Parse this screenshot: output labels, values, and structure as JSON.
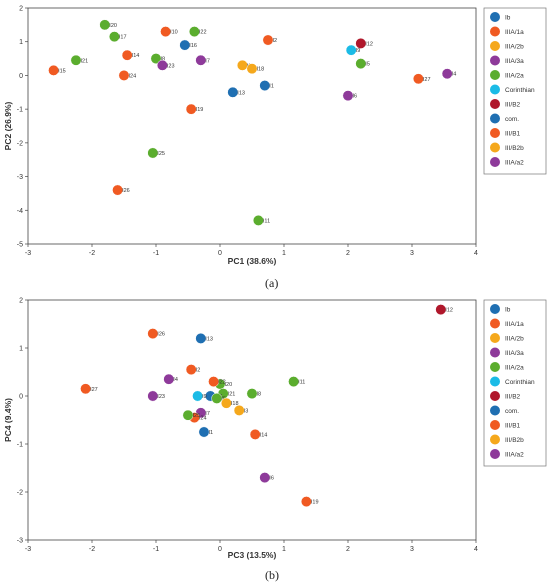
{
  "chart_data": [
    {
      "type": "scatter",
      "caption": "(a)",
      "xlabel": "PC1 (38.6%)",
      "ylabel": "PC2 (26.9%)",
      "xlim": [
        -3,
        4
      ],
      "ylim": [
        -5,
        2
      ],
      "xticks": [
        -3,
        -2,
        -1,
        0,
        1,
        2,
        3,
        4
      ],
      "yticks": [
        2,
        1,
        0,
        -1,
        -2,
        -3,
        -4,
        -5
      ],
      "grid": false,
      "legend_position": "right",
      "legend": [
        {
          "label": "Ib",
          "color": "#1f6fb2"
        },
        {
          "label": "IIIA/1a",
          "color": "#f05a22"
        },
        {
          "label": "IIIA/2b",
          "color": "#f5a81c"
        },
        {
          "label": "IIIA/3a",
          "color": "#8e3a9a"
        },
        {
          "label": "IIIA/2a",
          "color": "#5bad2e"
        },
        {
          "label": "Corinthian",
          "color": "#1bbbe6"
        },
        {
          "label": "III/B2",
          "color": "#b0172b"
        },
        {
          "label": "com.",
          "color": "#1f6fb2"
        },
        {
          "label": "III/B1",
          "color": "#f05a22"
        },
        {
          "label": "III/B2b",
          "color": "#f5a81c"
        },
        {
          "label": "IIIA/a2",
          "color": "#8e3a9a"
        }
      ],
      "points": [
        {
          "label": "I20",
          "x": -1.8,
          "y": 1.5,
          "color": "#5bad2e"
        },
        {
          "label": "I17",
          "x": -1.65,
          "y": 1.15,
          "color": "#5bad2e"
        },
        {
          "label": "I10",
          "x": -0.85,
          "y": 1.3,
          "color": "#f05a22"
        },
        {
          "label": "I22",
          "x": -0.4,
          "y": 1.3,
          "color": "#5bad2e"
        },
        {
          "label": "I16",
          "x": -0.55,
          "y": 0.9,
          "color": "#1f6fb2"
        },
        {
          "label": "I2",
          "x": 0.75,
          "y": 1.05,
          "color": "#f05a22"
        },
        {
          "label": "I12",
          "x": 2.2,
          "y": 0.95,
          "color": "#b0172b"
        },
        {
          "label": "I9",
          "x": 2.05,
          "y": 0.75,
          "color": "#1bbbe6"
        },
        {
          "label": "I21",
          "x": -2.25,
          "y": 0.45,
          "color": "#5bad2e"
        },
        {
          "label": "I14",
          "x": -1.45,
          "y": 0.6,
          "color": "#f05a22"
        },
        {
          "label": "I8",
          "x": -1.0,
          "y": 0.5,
          "color": "#5bad2e"
        },
        {
          "label": "I23",
          "x": -0.9,
          "y": 0.3,
          "color": "#8e3a9a"
        },
        {
          "label": "I7",
          "x": -0.3,
          "y": 0.45,
          "color": "#8e3a9a"
        },
        {
          "label": "I15",
          "x": -2.6,
          "y": 0.15,
          "color": "#f05a22"
        },
        {
          "label": "I24",
          "x": -1.5,
          "y": 0.0,
          "color": "#f05a22"
        },
        {
          "label": "I3",
          "x": 0.35,
          "y": 0.3,
          "color": "#f5a81c"
        },
        {
          "label": "I18",
          "x": 0.5,
          "y": 0.2,
          "color": "#f5a81c"
        },
        {
          "label": "I5",
          "x": 2.2,
          "y": 0.35,
          "color": "#5bad2e"
        },
        {
          "label": "I27",
          "x": 3.1,
          "y": -0.1,
          "color": "#f05a22"
        },
        {
          "label": "I4",
          "x": 3.55,
          "y": 0.05,
          "color": "#8e3a9a"
        },
        {
          "label": "I1",
          "x": 0.7,
          "y": -0.3,
          "color": "#1f6fb2"
        },
        {
          "label": "I13",
          "x": 0.2,
          "y": -0.5,
          "color": "#1f6fb2"
        },
        {
          "label": "I6",
          "x": 2.0,
          "y": -0.6,
          "color": "#8e3a9a"
        },
        {
          "label": "I19",
          "x": -0.45,
          "y": -1.0,
          "color": "#f05a22"
        },
        {
          "label": "I25",
          "x": -1.05,
          "y": -2.3,
          "color": "#5bad2e"
        },
        {
          "label": "I26",
          "x": -1.6,
          "y": -3.4,
          "color": "#f05a22"
        },
        {
          "label": "I11",
          "x": 0.6,
          "y": -4.3,
          "color": "#5bad2e"
        }
      ]
    },
    {
      "type": "scatter",
      "caption": "(b)",
      "xlabel": "PC3 (13.5%)",
      "ylabel": "PC4 (9.4%)",
      "xlim": [
        -3,
        4
      ],
      "ylim": [
        -3,
        2
      ],
      "xticks": [
        -3,
        -2,
        -1,
        0,
        1,
        2,
        3,
        4
      ],
      "yticks": [
        2,
        1,
        0,
        -1,
        -2,
        -3
      ],
      "grid": false,
      "legend_position": "right",
      "legend": [
        {
          "label": "Ib",
          "color": "#1f6fb2"
        },
        {
          "label": "IIIA/1a",
          "color": "#f05a22"
        },
        {
          "label": "IIIA/2b",
          "color": "#f5a81c"
        },
        {
          "label": "IIIA/3a",
          "color": "#8e3a9a"
        },
        {
          "label": "IIIA/2a",
          "color": "#5bad2e"
        },
        {
          "label": "Corinthian",
          "color": "#1bbbe6"
        },
        {
          "label": "III/B2",
          "color": "#b0172b"
        },
        {
          "label": "com.",
          "color": "#1f6fb2"
        },
        {
          "label": "III/B1",
          "color": "#f05a22"
        },
        {
          "label": "III/B2b",
          "color": "#f5a81c"
        },
        {
          "label": "IIIA/a2",
          "color": "#8e3a9a"
        }
      ],
      "points": [
        {
          "label": "I12",
          "x": 3.45,
          "y": 1.8,
          "color": "#b0172b"
        },
        {
          "label": "I26",
          "x": -1.05,
          "y": 1.3,
          "color": "#f05a22"
        },
        {
          "label": "I13",
          "x": -0.3,
          "y": 1.2,
          "color": "#1f6fb2"
        },
        {
          "label": "I2",
          "x": -0.45,
          "y": 0.55,
          "color": "#f05a22"
        },
        {
          "label": "I27",
          "x": -2.1,
          "y": 0.15,
          "color": "#f05a22"
        },
        {
          "label": "I4",
          "x": -0.8,
          "y": 0.35,
          "color": "#8e3a9a"
        },
        {
          "label": "I23",
          "x": -1.05,
          "y": 0.0,
          "color": "#8e3a9a"
        },
        {
          "label": "I11",
          "x": 1.15,
          "y": 0.3,
          "color": "#5bad2e"
        },
        {
          "label": "I8",
          "x": 0.5,
          "y": 0.05,
          "color": "#5bad2e"
        },
        {
          "label": "I20",
          "x": 0.0,
          "y": 0.25,
          "color": "#5bad2e"
        },
        {
          "label": "I22",
          "x": -0.1,
          "y": 0.3,
          "color": "#f05a22"
        },
        {
          "label": "I21",
          "x": 0.05,
          "y": 0.05,
          "color": "#5bad2e"
        },
        {
          "label": "I16",
          "x": -0.15,
          "y": 0.0,
          "color": "#1f6fb2"
        },
        {
          "label": "I5",
          "x": -0.05,
          "y": -0.05,
          "color": "#5bad2e"
        },
        {
          "label": "I9",
          "x": -0.35,
          "y": 0.0,
          "color": "#1bbbe6"
        },
        {
          "label": "I18",
          "x": 0.1,
          "y": -0.15,
          "color": "#f5a81c"
        },
        {
          "label": "I3",
          "x": 0.3,
          "y": -0.3,
          "color": "#f5a81c"
        },
        {
          "label": "I7",
          "x": -0.3,
          "y": -0.35,
          "color": "#8e3a9a"
        },
        {
          "label": "I24",
          "x": -0.4,
          "y": -0.45,
          "color": "#f05a22"
        },
        {
          "label": "I25",
          "x": -0.5,
          "y": -0.4,
          "color": "#5bad2e"
        },
        {
          "label": "I1",
          "x": -0.25,
          "y": -0.75,
          "color": "#1f6fb2"
        },
        {
          "label": "I14",
          "x": 0.55,
          "y": -0.8,
          "color": "#f05a22"
        },
        {
          "label": "I6",
          "x": 0.7,
          "y": -1.7,
          "color": "#8e3a9a"
        },
        {
          "label": "I19",
          "x": 1.35,
          "y": -2.2,
          "color": "#f05a22"
        }
      ]
    }
  ]
}
